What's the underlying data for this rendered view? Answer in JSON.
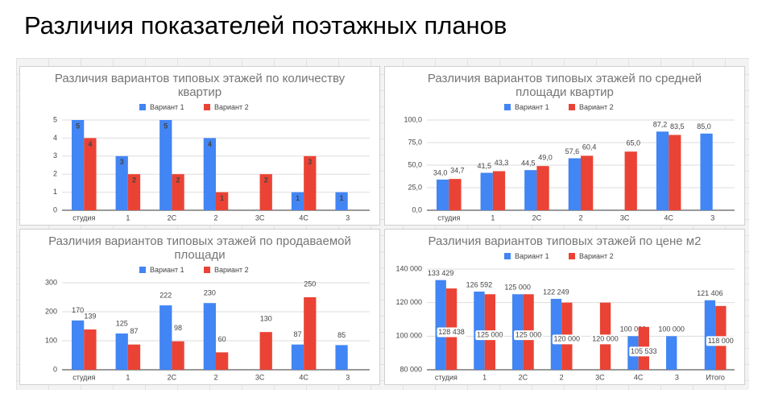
{
  "title": "Различия показателей поэтажных планов",
  "chart_data": [
    {
      "type": "bar",
      "title": "Различия вариантов типовых этажей по количеству квартир",
      "categories": [
        "студия",
        "1",
        "2С",
        "2",
        "3С",
        "4С",
        "3"
      ],
      "series": [
        {
          "name": "Вариант 1",
          "color": "#4285f4",
          "values": [
            5,
            3,
            5,
            4,
            null,
            1,
            1
          ]
        },
        {
          "name": "Вариант 2",
          "color": "#ea4335",
          "values": [
            4,
            2,
            2,
            1,
            2,
            3,
            null
          ]
        }
      ],
      "ylim": [
        0,
        5
      ],
      "yticks": [
        0,
        1,
        2,
        3,
        4,
        5
      ],
      "grid": true
    },
    {
      "type": "bar",
      "title": "Различия вариантов типовых этажей по средней площади квартир",
      "categories": [
        "студия",
        "1",
        "2С",
        "2",
        "3С",
        "4С",
        "3"
      ],
      "series": [
        {
          "name": "Вариант 1",
          "color": "#4285f4",
          "values": [
            34.0,
            41.5,
            44.5,
            57.6,
            null,
            87.2,
            85.0
          ],
          "value_labels": [
            "34,0",
            "41,5",
            "44,5",
            "57,6",
            null,
            "87,2",
            "85,0"
          ]
        },
        {
          "name": "Вариант 2",
          "color": "#ea4335",
          "values": [
            34.7,
            43.3,
            49.0,
            60.4,
            65.0,
            83.5,
            null
          ],
          "value_labels": [
            "34,7",
            "43,3",
            "49,0",
            "60,4",
            "65,0",
            "83,5",
            null
          ]
        }
      ],
      "ylim": [
        0,
        100
      ],
      "yticks": [
        {
          "value": 0,
          "label": "0,0"
        },
        {
          "value": 25,
          "label": "25,0"
        },
        {
          "value": 50,
          "label": "50,0"
        },
        {
          "value": 75,
          "label": "75,0"
        },
        {
          "value": 100,
          "label": "100,0"
        }
      ],
      "grid": true
    },
    {
      "type": "bar",
      "title": "Различия вариантов типовых этажей по продаваемой площади",
      "categories": [
        "студия",
        "1",
        "2С",
        "2",
        "3С",
        "4С",
        "3"
      ],
      "series": [
        {
          "name": "Вариант 1",
          "color": "#4285f4",
          "values": [
            170,
            125,
            222,
            230,
            null,
            87,
            85
          ]
        },
        {
          "name": "Вариант 2",
          "color": "#ea4335",
          "values": [
            139,
            87,
            98,
            60,
            130,
            250,
            null
          ]
        }
      ],
      "ylim": [
        0,
        300
      ],
      "yticks": [
        0,
        100,
        200,
        300
      ],
      "grid": true
    },
    {
      "type": "bar",
      "title": "Различия вариантов типовых этажей по цене м2",
      "categories": [
        "студия",
        "1",
        "2С",
        "2",
        "3С",
        "4С",
        "3",
        "Итого"
      ],
      "series": [
        {
          "name": "Вариант 1",
          "color": "#4285f4",
          "values": [
            133429,
            126592,
            125000,
            122249,
            null,
            100000,
            100000,
            121406
          ],
          "value_labels": [
            "133 429",
            "126 592",
            "125 000",
            "122 249",
            null,
            "100 000",
            "100 000",
            "121 406"
          ]
        },
        {
          "name": "Вариант 2",
          "color": "#ea4335",
          "values": [
            128438,
            125000,
            125000,
            120000,
            120000,
            105533,
            null,
            118000
          ],
          "value_labels": [
            "128 438",
            "125 000",
            "125 000",
            "120 000",
            "120 000",
            "105 533",
            null,
            "118 000"
          ]
        }
      ],
      "ylim": [
        80000,
        140000
      ],
      "yticks": [
        {
          "value": 80000,
          "label": "80 000"
        },
        {
          "value": 100000,
          "label": "100 000"
        },
        {
          "value": 120000,
          "label": "120 000"
        },
        {
          "value": 140000,
          "label": "140 000"
        }
      ],
      "grid": true
    }
  ]
}
